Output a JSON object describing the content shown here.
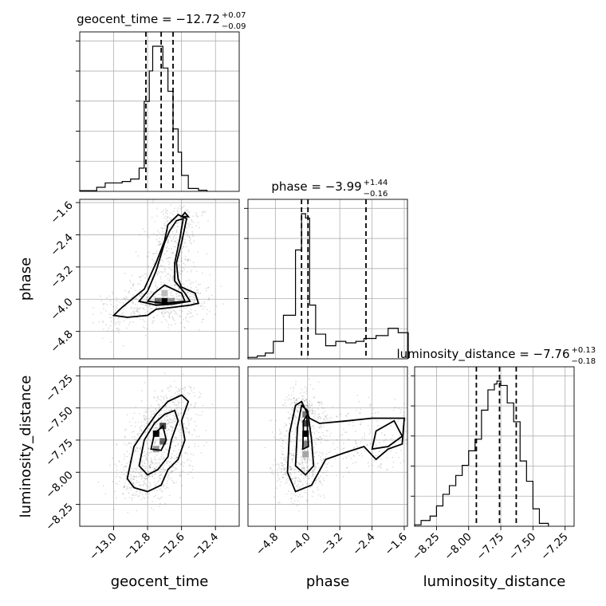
{
  "chart_data": {
    "type": "corner",
    "parameters": [
      "geocent_time",
      "phase",
      "luminosity_distance"
    ],
    "grid": true,
    "ranges": {
      "geocent_time": [
        -13.2,
        -12.26
      ],
      "phase": [
        -5.48,
        -1.52
      ],
      "luminosity_distance": [
        -8.42,
        -7.18
      ]
    },
    "ticks": {
      "geocent_time": [
        -13.0,
        -12.8,
        -12.6,
        -12.4
      ],
      "phase": [
        -4.8,
        -4.0,
        -3.2,
        -2.4,
        -1.6
      ],
      "luminosity_distance": [
        -8.25,
        -8.0,
        -7.75,
        -7.5,
        -7.25
      ]
    },
    "tick_labels": {
      "geocent_time": [
        "−13.0",
        "−12.8",
        "−12.6",
        "−12.4"
      ],
      "phase": [
        "−4.8",
        "−4.0",
        "−3.2",
        "−2.4",
        "−1.6"
      ],
      "luminosity_distance": [
        "−8.25",
        "−8.00",
        "−7.75",
        "−7.50",
        "−7.25"
      ]
    },
    "axis_labels": {
      "geocent_time": "geocent_time",
      "phase": "phase",
      "luminosity_distance": "luminosity_distance"
    },
    "titles": {
      "geocent_time": {
        "main": "geocent_time = −12.72",
        "plus": "+0.07",
        "minus": "−0.09"
      },
      "phase": {
        "main": "phase = −3.99",
        "plus": "+1.44",
        "minus": "−0.16"
      },
      "luminosity_distance": {
        "main": "luminosity_distance = −7.76",
        "plus": "+0.13",
        "minus": "−0.18"
      }
    },
    "quantiles": {
      "geocent_time": [
        -12.81,
        -12.72,
        -12.65
      ],
      "phase": [
        -4.15,
        -3.99,
        -2.55
      ],
      "luminosity_distance": [
        -7.94,
        -7.76,
        -7.63
      ]
    },
    "histograms": {
      "geocent_time": {
        "edges": [
          -13.2,
          -13.1,
          -13.05,
          -12.95,
          -12.9,
          -12.85,
          -12.82,
          -12.79,
          -12.77,
          -12.74,
          -12.71,
          -12.68,
          -12.65,
          -12.62,
          -12.6,
          -12.56,
          -12.5,
          -12.45
        ],
        "counts": [
          0.5,
          2.8,
          5.8,
          6.8,
          8.5,
          16,
          62,
          83,
          100,
          100,
          85,
          69,
          43,
          27,
          11,
          2,
          0.8
        ]
      },
      "phase": {
        "edges": [
          -5.48,
          -5.25,
          -5.05,
          -4.85,
          -4.6,
          -4.3,
          -4.15,
          -4.05,
          -3.95,
          -3.8,
          -3.55,
          -3.3,
          -3.05,
          -2.8,
          -2.6,
          -2.3,
          -2.0,
          -1.75,
          -1.5
        ],
        "counts": [
          1,
          2,
          4,
          12,
          30,
          75,
          100,
          97,
          37,
          17,
          9,
          12,
          11,
          12,
          14,
          16,
          21,
          18
        ]
      },
      "luminosity_distance": {
        "edges": [
          -8.42,
          -8.37,
          -8.3,
          -8.25,
          -8.2,
          -8.15,
          -8.1,
          -8.05,
          -8.0,
          -7.95,
          -7.9,
          -7.85,
          -7.8,
          -7.78,
          -7.75,
          -7.7,
          -7.65,
          -7.6,
          -7.55,
          -7.5,
          -7.45,
          -7.38
        ],
        "counts": [
          1,
          4,
          7,
          14,
          22,
          28,
          35,
          42,
          52,
          60,
          80,
          94,
          98,
          100,
          97,
          85,
          72,
          45,
          31,
          12,
          2
        ]
      }
    },
    "pairs": [
      {
        "x": "geocent_time",
        "y": "phase"
      },
      {
        "x": "geocent_time",
        "y": "luminosity_distance"
      },
      {
        "x": "phase",
        "y": "luminosity_distance"
      }
    ],
    "contours": {
      "geocent_time|phase": [
        [
          [
            -13.0,
            -4.4
          ],
          [
            -12.95,
            -4.2
          ],
          [
            -12.82,
            -3.75
          ],
          [
            -12.75,
            -3.1
          ],
          [
            -12.7,
            -2.55
          ],
          [
            -12.68,
            -2.15
          ],
          [
            -12.62,
            -1.9
          ],
          [
            -12.57,
            -2.0
          ],
          [
            -12.6,
            -2.6
          ],
          [
            -12.63,
            -3.1
          ],
          [
            -12.62,
            -3.5
          ],
          [
            -12.6,
            -3.7
          ],
          [
            -12.52,
            -3.85
          ],
          [
            -12.5,
            -4.1
          ],
          [
            -12.55,
            -4.15
          ],
          [
            -12.65,
            -4.2
          ],
          [
            -12.75,
            -4.25
          ],
          [
            -12.8,
            -4.4
          ],
          [
            -12.92,
            -4.45
          ],
          [
            -13.0,
            -4.4
          ]
        ],
        [
          [
            -12.85,
            -4.05
          ],
          [
            -12.8,
            -3.8
          ],
          [
            -12.75,
            -3.3
          ],
          [
            -12.7,
            -2.6
          ],
          [
            -12.67,
            -2.3
          ],
          [
            -12.63,
            -2.05
          ],
          [
            -12.59,
            -2.0
          ],
          [
            -12.61,
            -2.5
          ],
          [
            -12.64,
            -3.1
          ],
          [
            -12.64,
            -3.55
          ],
          [
            -12.58,
            -3.85
          ],
          [
            -12.55,
            -4.05
          ],
          [
            -12.65,
            -4.12
          ],
          [
            -12.75,
            -4.15
          ],
          [
            -12.85,
            -4.05
          ]
        ],
        [
          [
            -12.8,
            -4.05
          ],
          [
            -12.76,
            -3.85
          ],
          [
            -12.7,
            -3.65
          ],
          [
            -12.6,
            -3.85
          ],
          [
            -12.58,
            -4.05
          ],
          [
            -12.7,
            -4.1
          ],
          [
            -12.8,
            -4.05
          ]
        ],
        [
          [
            -12.6,
            -1.95
          ],
          [
            -12.58,
            -1.85
          ],
          [
            -12.56,
            -1.95
          ],
          [
            -12.6,
            -1.95
          ]
        ]
      ],
      "geocent_time|luminosity_distance": [
        [
          [
            -12.92,
            -8.05
          ],
          [
            -12.88,
            -7.8
          ],
          [
            -12.82,
            -7.68
          ],
          [
            -12.75,
            -7.55
          ],
          [
            -12.68,
            -7.45
          ],
          [
            -12.6,
            -7.4
          ],
          [
            -12.56,
            -7.45
          ],
          [
            -12.6,
            -7.6
          ],
          [
            -12.58,
            -7.75
          ],
          [
            -12.62,
            -7.9
          ],
          [
            -12.68,
            -7.98
          ],
          [
            -12.72,
            -8.1
          ],
          [
            -12.8,
            -8.15
          ],
          [
            -12.88,
            -8.12
          ],
          [
            -12.92,
            -8.05
          ]
        ],
        [
          [
            -12.85,
            -7.95
          ],
          [
            -12.82,
            -7.75
          ],
          [
            -12.76,
            -7.62
          ],
          [
            -12.7,
            -7.55
          ],
          [
            -12.64,
            -7.52
          ],
          [
            -12.62,
            -7.6
          ],
          [
            -12.66,
            -7.75
          ],
          [
            -12.68,
            -7.88
          ],
          [
            -12.74,
            -7.98
          ],
          [
            -12.8,
            -8.02
          ],
          [
            -12.85,
            -7.95
          ]
        ],
        [
          [
            -12.78,
            -7.82
          ],
          [
            -12.76,
            -7.7
          ],
          [
            -12.71,
            -7.64
          ],
          [
            -12.69,
            -7.75
          ],
          [
            -12.72,
            -7.83
          ],
          [
            -12.78,
            -7.82
          ]
        ]
      ],
      "phase|luminosity_distance": [
        [
          [
            -4.5,
            -8.0
          ],
          [
            -4.45,
            -7.7
          ],
          [
            -4.3,
            -7.48
          ],
          [
            -4.15,
            -7.45
          ],
          [
            -3.95,
            -7.58
          ],
          [
            -3.7,
            -7.62
          ],
          [
            -3.0,
            -7.6
          ],
          [
            -2.4,
            -7.58
          ],
          [
            -1.6,
            -7.58
          ],
          [
            -1.65,
            -7.78
          ],
          [
            -2.0,
            -7.82
          ],
          [
            -2.3,
            -7.9
          ],
          [
            -2.6,
            -7.8
          ],
          [
            -3.1,
            -7.85
          ],
          [
            -3.55,
            -7.9
          ],
          [
            -3.9,
            -8.1
          ],
          [
            -4.3,
            -8.15
          ],
          [
            -4.5,
            -8.0
          ]
        ],
        [
          [
            -4.3,
            -7.95
          ],
          [
            -4.25,
            -7.65
          ],
          [
            -4.15,
            -7.48
          ],
          [
            -4.0,
            -7.52
          ],
          [
            -3.9,
            -7.75
          ],
          [
            -3.85,
            -7.95
          ],
          [
            -4.05,
            -8.02
          ],
          [
            -4.3,
            -7.95
          ]
        ],
        [
          [
            -4.12,
            -7.82
          ],
          [
            -4.1,
            -7.6
          ],
          [
            -4.02,
            -7.56
          ],
          [
            -3.98,
            -7.8
          ],
          [
            -4.12,
            -7.82
          ]
        ],
        [
          [
            -2.4,
            -7.82
          ],
          [
            -2.3,
            -7.68
          ],
          [
            -1.85,
            -7.6
          ],
          [
            -1.65,
            -7.72
          ],
          [
            -2.0,
            -7.8
          ],
          [
            -2.4,
            -7.82
          ]
        ]
      ]
    },
    "density_cells": {
      "geocent_time|phase": [
        {
          "x": -12.74,
          "y": -4.05,
          "v": 0.55
        },
        {
          "x": -12.7,
          "y": -4.05,
          "v": 1.0
        },
        {
          "x": -12.66,
          "y": -4.05,
          "v": 0.4
        },
        {
          "x": -12.7,
          "y": -3.85,
          "v": 0.2
        }
      ],
      "geocent_time|luminosity_distance": [
        {
          "x": -12.75,
          "y": -7.7,
          "v": 0.95
        },
        {
          "x": -12.71,
          "y": -7.64,
          "v": 0.7
        },
        {
          "x": -12.71,
          "y": -7.76,
          "v": 0.6
        },
        {
          "x": -12.75,
          "y": -7.82,
          "v": 0.35
        }
      ],
      "phase|luminosity_distance": [
        {
          "x": -4.05,
          "y": -7.55,
          "v": 0.5
        },
        {
          "x": -4.05,
          "y": -7.62,
          "v": 0.7
        },
        {
          "x": -4.05,
          "y": -7.7,
          "v": 1.0
        },
        {
          "x": -4.05,
          "y": -7.78,
          "v": 0.45
        },
        {
          "x": -4.05,
          "y": -7.86,
          "v": 0.3
        }
      ]
    },
    "samples_shown": true
  }
}
